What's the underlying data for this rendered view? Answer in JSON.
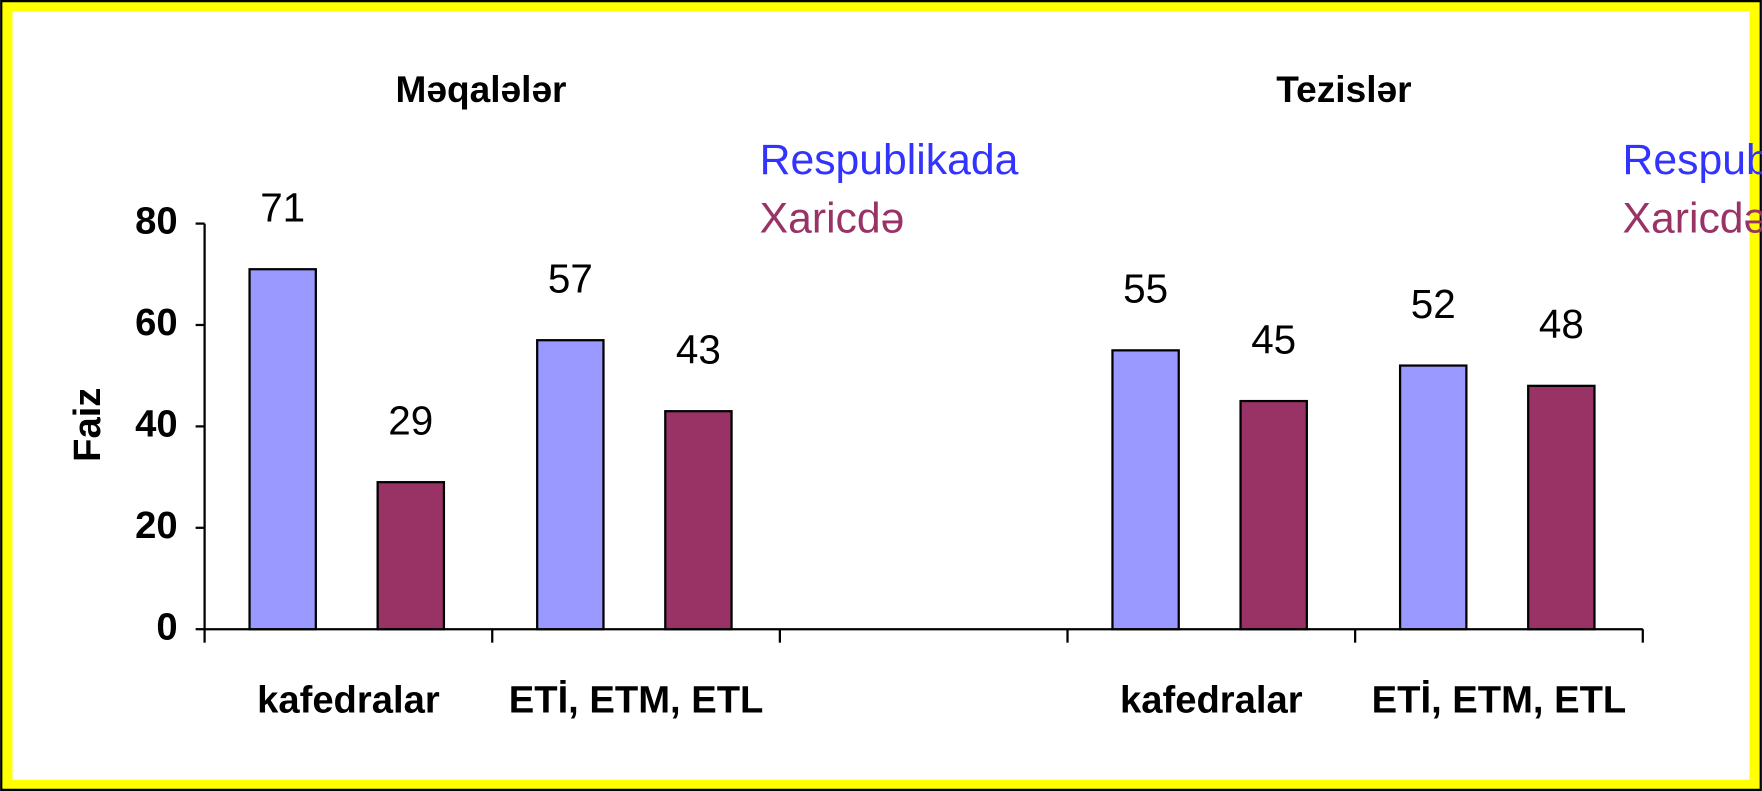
{
  "chart_data": {
    "type": "bar",
    "titles": [
      "Məqalələr",
      "Tezislər"
    ],
    "y_label": "Faiz",
    "categories": [
      "kafedralar",
      "ETİ, ETM, ETL",
      null,
      "kafedralar",
      "ETİ, ETM, ETL"
    ],
    "series": [
      {
        "name": "Respublikada",
        "color": "#9999ff",
        "values": [
          71,
          57,
          null,
          55,
          52
        ]
      },
      {
        "name": "Xaricdə",
        "color": "#993366",
        "values": [
          29,
          43,
          null,
          45,
          48
        ]
      }
    ],
    "ylim": [
      0,
      80
    ],
    "yticks": [
      0,
      20,
      40,
      60,
      80
    ],
    "grid": false
  }
}
